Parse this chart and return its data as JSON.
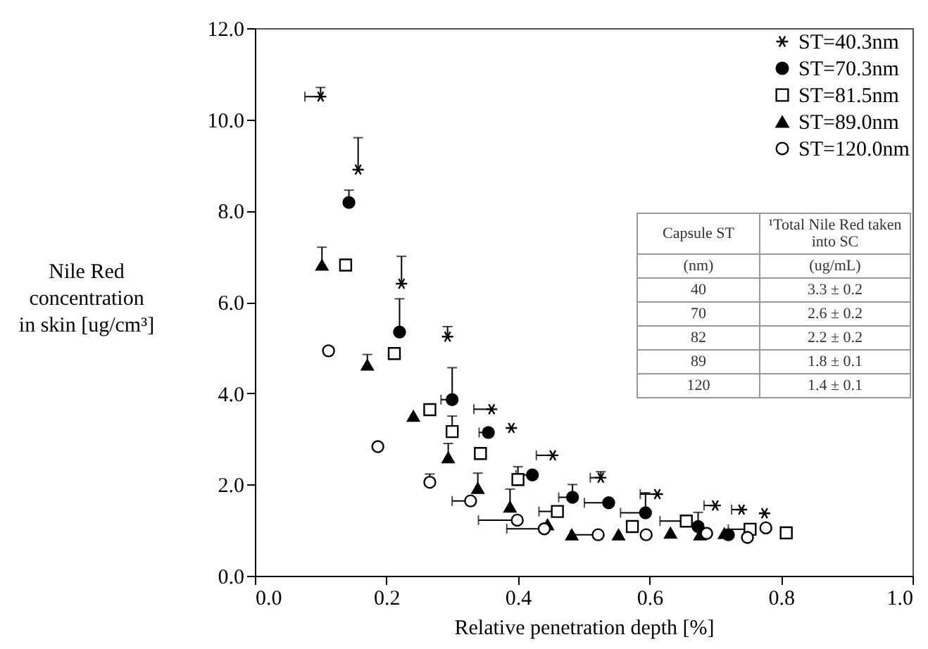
{
  "chart_data": {
    "type": "scatter",
    "xlabel": "Relative penetration depth [%]",
    "ylabel": "Nile Red\nconcentration\nin skin [ug/cm³]",
    "xlim": [
      0,
      1
    ],
    "xticks": [
      {
        "value": 0,
        "label": "0.0"
      },
      {
        "value": 0.2,
        "label": "0.2"
      },
      {
        "value": 0.4,
        "label": "0.4"
      },
      {
        "value": 0.6,
        "label": "0.6"
      },
      {
        "value": 0.8,
        "label": "0.8"
      },
      {
        "value": 1,
        "label": "1.0"
      }
    ],
    "ylim": [
      0,
      12
    ],
    "yticks": [
      {
        "value": 0,
        "label": "0.0"
      },
      {
        "value": 2,
        "label": "2.0"
      },
      {
        "value": 4,
        "label": "4.0"
      },
      {
        "value": 6,
        "label": "6.0"
      },
      {
        "value": 8,
        "label": "8.0"
      },
      {
        "value": 10,
        "label": "10.0"
      },
      {
        "value": 12,
        "label": "12.0"
      }
    ],
    "grid": false,
    "legend": "top right",
    "series": [
      {
        "name": "ST=40.3nm",
        "color": "#000000",
        "marker": "cross",
        "x": [
          0.1,
          0.157,
          0.223,
          0.293,
          0.36,
          0.39,
          0.453,
          0.526,
          0.612,
          0.7,
          0.74,
          0.775
        ],
        "values": [
          10.5,
          8.9,
          6.4,
          5.24,
          3.65,
          3.24,
          2.64,
          2.15,
          1.79,
          1.54,
          1.45,
          1.37
        ],
        "errors": [
          [
            10.5,
            10.7
          ],
          [
            8.9,
            9.6
          ],
          [
            6.4,
            7.0
          ],
          [
            5.24,
            5.46
          ],
          null,
          null,
          null,
          [
            2.15,
            2.28
          ],
          null,
          null,
          null,
          null
        ],
        "xerrors": [
          [
            0.076,
            0.1
          ],
          null,
          null,
          null,
          [
            0.333,
            0.36
          ],
          null,
          [
            0.428,
            0.453
          ],
          [
            0.51,
            0.526
          ],
          [
            0.586,
            0.612
          ],
          [
            0.683,
            0.7
          ],
          [
            0.725,
            0.74
          ],
          null
        ]
      },
      {
        "name": "ST=70.3nm",
        "color": "#000000",
        "marker": "circle",
        "x": [
          0.143,
          0.22,
          0.3,
          0.355,
          0.422,
          0.483,
          0.538,
          0.594,
          0.674,
          0.72
        ],
        "values": [
          8.18,
          5.34,
          3.86,
          3.14,
          2.21,
          1.72,
          1.6,
          1.38,
          1.08,
          0.9
        ],
        "errors": [
          [
            8.18,
            8.45
          ],
          [
            5.34,
            6.07
          ],
          [
            3.86,
            4.56
          ],
          null,
          null,
          [
            1.72,
            2.0
          ],
          null,
          [
            1.38,
            1.82
          ],
          [
            1.08,
            1.39
          ],
          null
        ],
        "xerrors": [
          null,
          null,
          [
            0.283,
            0.3
          ],
          [
            0.341,
            0.355
          ],
          [
            0.397,
            0.422
          ],
          [
            0.462,
            0.483
          ],
          [
            0.501,
            0.538
          ],
          [
            0.556,
            0.594
          ],
          null,
          null
        ]
      },
      {
        "name": "ST=81.5nm",
        "color": "#000000",
        "marker": "square",
        "x": [
          0.138,
          0.212,
          0.266,
          0.3,
          0.343,
          0.4,
          0.46,
          0.574,
          0.656,
          0.753,
          0.808
        ],
        "values": [
          6.81,
          4.87,
          3.64,
          3.16,
          2.68,
          2.11,
          1.41,
          1.08,
          1.2,
          1.02,
          0.94
        ],
        "errors": [
          null,
          null,
          null,
          [
            3.16,
            3.5
          ],
          null,
          [
            2.11,
            2.39
          ],
          null,
          null,
          null,
          null,
          null
        ],
        "xerrors": [
          null,
          null,
          null,
          null,
          null,
          null,
          [
            0.432,
            0.46
          ],
          null,
          [
            0.616,
            0.656
          ],
          [
            0.72,
            0.753
          ],
          null
        ]
      },
      {
        "name": "ST=89.0nm",
        "color": "#000000",
        "marker": "triangle",
        "x": [
          0.102,
          0.171,
          0.241,
          0.294,
          0.339,
          0.388,
          0.445,
          0.482,
          0.553,
          0.632,
          0.677,
          0.714
        ],
        "values": [
          6.81,
          4.62,
          3.5,
          2.59,
          1.92,
          1.51,
          1.12,
          0.9,
          0.9,
          0.94,
          0.9,
          0.93
        ],
        "errors": [
          [
            6.81,
            7.2
          ],
          [
            4.62,
            4.85
          ],
          null,
          [
            2.59,
            2.9
          ],
          [
            1.92,
            2.25
          ],
          [
            1.51,
            1.9
          ],
          null,
          null,
          null,
          null,
          null,
          null
        ]
      },
      {
        "name": "ST=120.0nm",
        "color": "#000000",
        "marker": "circle",
        "x": [
          0.112,
          0.187,
          0.266,
          0.328,
          0.399,
          0.44,
          0.522,
          0.595,
          0.687,
          0.749,
          0.777
        ],
        "values": [
          4.93,
          2.83,
          2.05,
          1.64,
          1.22,
          1.03,
          0.9,
          0.9,
          0.93,
          0.84,
          1.05
        ],
        "errors": [
          null,
          null,
          [
            2.05,
            2.23
          ],
          null,
          null,
          null,
          null,
          null,
          null,
          null,
          null
        ],
        "xerrors": [
          null,
          null,
          null,
          [
            0.3,
            0.328
          ],
          [
            0.34,
            0.399
          ],
          [
            0.383,
            0.44
          ],
          [
            0.48,
            0.522
          ],
          null,
          null,
          null,
          null
        ]
      }
    ],
    "annotations": [
      "Capsule ST",
      "¹Total Nile Red taken into SC",
      "(nm)",
      "(ug/mL)",
      "40",
      "3.3 ± 0.2",
      "70",
      "2.6 ± 0.2",
      "82",
      "2.2 ± 0.2",
      "89",
      "1.8 ± 0.1",
      "120",
      "1.4 ± 0.1"
    ]
  }
}
